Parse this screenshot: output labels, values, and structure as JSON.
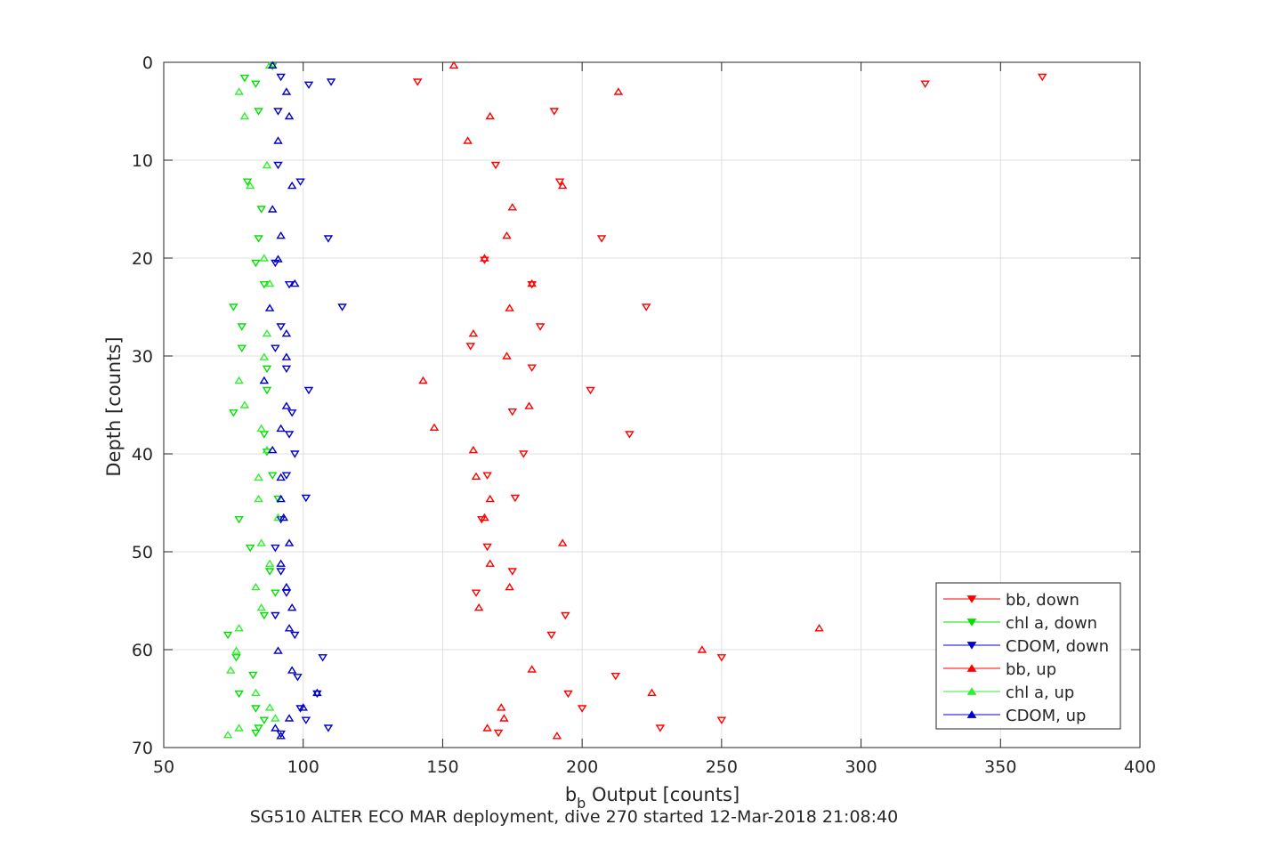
{
  "chart_data": {
    "type": "scatter",
    "title": "",
    "xlabel": "b",
    "xlabel_sub": "b",
    "xlabel_suffix": " Output [counts]",
    "ylabel": "Depth [counts]",
    "footer": "SG510 ALTER ECO MAR deployment, dive 270 started 12-Mar-2018 21:08:40",
    "xlim": [
      50,
      400
    ],
    "ylim": [
      0,
      70
    ],
    "y_reversed": true,
    "xticks": [
      50,
      100,
      150,
      200,
      250,
      300,
      350,
      400
    ],
    "yticks": [
      0,
      10,
      20,
      30,
      40,
      50,
      60,
      70
    ],
    "grid": true,
    "legend_position": "bottom-right",
    "series": [
      {
        "name": "bb, down",
        "color": "#ff0000",
        "marker": "triangle-down",
        "points": [
          [
            365,
            1.5
          ],
          [
            323,
            2.2
          ],
          [
            141,
            2
          ],
          [
            190,
            5
          ],
          [
            192,
            12.2
          ],
          [
            169,
            10.5
          ],
          [
            207,
            18
          ],
          [
            165,
            20.2
          ],
          [
            182,
            22.7
          ],
          [
            223,
            25
          ],
          [
            185,
            27
          ],
          [
            160,
            29
          ],
          [
            182,
            31.2
          ],
          [
            203,
            33.5
          ],
          [
            175,
            35.7
          ],
          [
            217,
            38
          ],
          [
            179,
            40
          ],
          [
            166,
            42.2
          ],
          [
            176,
            44.5
          ],
          [
            164,
            46.7
          ],
          [
            166,
            49.5
          ],
          [
            175,
            52
          ],
          [
            162,
            54.2
          ],
          [
            194,
            56.5
          ],
          [
            189,
            58.5
          ],
          [
            250,
            60.8
          ],
          [
            212,
            62.7
          ],
          [
            195,
            64.5
          ],
          [
            200,
            66
          ],
          [
            250,
            67.2
          ],
          [
            228,
            68
          ],
          [
            170,
            68.5
          ]
        ]
      },
      {
        "name": "chl a, down",
        "color": "#00e000",
        "marker": "triangle-down",
        "points": [
          [
            79,
            1.6
          ],
          [
            83,
            2.2
          ],
          [
            89,
            0.4
          ],
          [
            84,
            5
          ],
          [
            80,
            12.2
          ],
          [
            85,
            15
          ],
          [
            84,
            18
          ],
          [
            83,
            20.5
          ],
          [
            86,
            22.7
          ],
          [
            75,
            25
          ],
          [
            78,
            27
          ],
          [
            78,
            29.2
          ],
          [
            87,
            31.3
          ],
          [
            87,
            33.5
          ],
          [
            75,
            35.8
          ],
          [
            86,
            38
          ],
          [
            87,
            39.8
          ],
          [
            89,
            42.2
          ],
          [
            91,
            44.6
          ],
          [
            77,
            46.7
          ],
          [
            81,
            49.6
          ],
          [
            88,
            52
          ],
          [
            90,
            54.2
          ],
          [
            86,
            56.5
          ],
          [
            73,
            58.5
          ],
          [
            76,
            60.8
          ],
          [
            82,
            62.6
          ],
          [
            77,
            64.5
          ],
          [
            83,
            66
          ],
          [
            86,
            67.2
          ],
          [
            84,
            68
          ],
          [
            83,
            68.5
          ]
        ]
      },
      {
        "name": "CDOM, down",
        "color": "#0000cc",
        "marker": "triangle-down",
        "points": [
          [
            110,
            2
          ],
          [
            102,
            2.3
          ],
          [
            92,
            1.5
          ],
          [
            91,
            5
          ],
          [
            99,
            12.2
          ],
          [
            91,
            10.5
          ],
          [
            109,
            18
          ],
          [
            90,
            20.5
          ],
          [
            95,
            22.7
          ],
          [
            114,
            25
          ],
          [
            92,
            27
          ],
          [
            90,
            29.2
          ],
          [
            94,
            31.3
          ],
          [
            102,
            33.5
          ],
          [
            96,
            35.8
          ],
          [
            95,
            38
          ],
          [
            97,
            40
          ],
          [
            94,
            42.2
          ],
          [
            101,
            44.5
          ],
          [
            92,
            46.7
          ],
          [
            90,
            49.6
          ],
          [
            92,
            52
          ],
          [
            94,
            54.2
          ],
          [
            90,
            56.5
          ],
          [
            97,
            58.5
          ],
          [
            107,
            60.8
          ],
          [
            98,
            62.8
          ],
          [
            105,
            64.5
          ],
          [
            99,
            66
          ],
          [
            101,
            67.2
          ],
          [
            109,
            68
          ],
          [
            92,
            68.6
          ]
        ]
      },
      {
        "name": "bb, up",
        "color": "#ff0000",
        "marker": "triangle-up",
        "points": [
          [
            154,
            0.3
          ],
          [
            213,
            3
          ],
          [
            167,
            5.5
          ],
          [
            159,
            8
          ],
          [
            193,
            12.6
          ],
          [
            175,
            14.8
          ],
          [
            173,
            17.7
          ],
          [
            165,
            20
          ],
          [
            182,
            22.6
          ],
          [
            174,
            25.1
          ],
          [
            161,
            27.7
          ],
          [
            173,
            30
          ],
          [
            143,
            32.5
          ],
          [
            181,
            35.1
          ],
          [
            147,
            37.3
          ],
          [
            161,
            39.6
          ],
          [
            162,
            42.3
          ],
          [
            167,
            44.6
          ],
          [
            165,
            46.5
          ],
          [
            193,
            49.1
          ],
          [
            167,
            51.2
          ],
          [
            174,
            53.6
          ],
          [
            163,
            55.7
          ],
          [
            285,
            57.8
          ],
          [
            243,
            60
          ],
          [
            182,
            62
          ],
          [
            225,
            64.4
          ],
          [
            171,
            65.9
          ],
          [
            172,
            67
          ],
          [
            166,
            68
          ],
          [
            191,
            68.8
          ]
        ]
      },
      {
        "name": "chl a, up",
        "color": "#33ee33",
        "marker": "triangle-up",
        "points": [
          [
            88,
            0.3
          ],
          [
            77,
            3
          ],
          [
            79,
            5.5
          ],
          [
            87,
            10.5
          ],
          [
            81,
            12.6
          ],
          [
            86,
            20
          ],
          [
            88,
            22.6
          ],
          [
            87,
            27.7
          ],
          [
            86,
            30.1
          ],
          [
            77,
            32.5
          ],
          [
            79,
            35
          ],
          [
            85,
            37.4
          ],
          [
            87,
            39.6
          ],
          [
            84,
            42.4
          ],
          [
            84,
            44.6
          ],
          [
            91,
            46.5
          ],
          [
            85,
            49.1
          ],
          [
            88,
            51.2
          ],
          [
            83,
            53.6
          ],
          [
            85,
            55.7
          ],
          [
            77,
            57.8
          ],
          [
            76,
            60.1
          ],
          [
            74,
            62.1
          ],
          [
            83,
            64.4
          ],
          [
            88,
            65.9
          ],
          [
            90,
            67
          ],
          [
            77,
            68
          ],
          [
            73,
            68.7
          ]
        ]
      },
      {
        "name": "CDOM, up",
        "color": "#0000cc",
        "marker": "triangle-up",
        "points": [
          [
            89,
            0.3
          ],
          [
            94,
            3
          ],
          [
            95,
            5.5
          ],
          [
            91,
            8
          ],
          [
            96,
            12.6
          ],
          [
            89,
            15
          ],
          [
            92,
            17.7
          ],
          [
            91,
            20.1
          ],
          [
            97,
            22.6
          ],
          [
            88,
            25.1
          ],
          [
            94,
            27.7
          ],
          [
            94,
            30.1
          ],
          [
            86,
            32.5
          ],
          [
            94,
            35.1
          ],
          [
            92,
            37.4
          ],
          [
            89,
            39.6
          ],
          [
            92,
            42.4
          ],
          [
            92,
            44.6
          ],
          [
            93,
            46.5
          ],
          [
            95,
            49.1
          ],
          [
            92,
            51.2
          ],
          [
            94,
            53.6
          ],
          [
            96,
            55.7
          ],
          [
            95,
            57.8
          ],
          [
            91,
            60.1
          ],
          [
            96,
            62.1
          ],
          [
            105,
            64.4
          ],
          [
            100,
            65.9
          ],
          [
            95,
            67
          ],
          [
            90,
            68
          ],
          [
            92,
            68.8
          ]
        ]
      }
    ]
  }
}
